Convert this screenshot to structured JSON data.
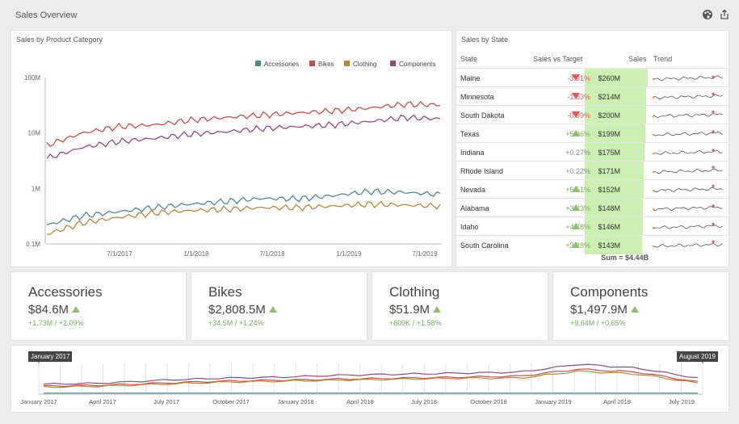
{
  "dashboard": {
    "title": "Sales Overview"
  },
  "header_icons": [
    "palette-icon",
    "export-icon"
  ],
  "category_chart": {
    "caption": "Sales by Product Category",
    "legend": [
      "Accessories",
      "Bikes",
      "Clothing",
      "Components"
    ]
  },
  "state_grid": {
    "caption": "Sales by State",
    "columns": [
      "State",
      "Sales vs Target",
      "Sales",
      "Trend"
    ],
    "rows": [
      {
        "state": "Maine",
        "delta": "-3.91%",
        "dir": "down",
        "sales": "$260M",
        "bar": 1.0
      },
      {
        "state": "Minnesota",
        "delta": "-1.53%",
        "dir": "down",
        "sales": "$214M",
        "bar": 0.98
      },
      {
        "state": "South Dakota",
        "delta": "-0.99%",
        "dir": "down",
        "sales": "$200M",
        "bar": 0.97
      },
      {
        "state": "Texas",
        "delta": "+5.86%",
        "dir": "up",
        "sales": "$199M",
        "bar": 0.96
      },
      {
        "state": "Indiana",
        "delta": "+0.27%",
        "dir": "none",
        "sales": "$175M",
        "bar": 0.95
      },
      {
        "state": "Rhode Island",
        "delta": "+0.22%",
        "dir": "none",
        "sales": "$171M",
        "bar": 0.94
      },
      {
        "state": "Nevada",
        "delta": "+5.51%",
        "dir": "up",
        "sales": "$152M",
        "bar": 0.93
      },
      {
        "state": "Alabama",
        "delta": "+3.23%",
        "dir": "up",
        "sales": "$148M",
        "bar": 0.92
      },
      {
        "state": "Idaho",
        "delta": "+4.78%",
        "dir": "up",
        "sales": "$146M",
        "bar": 0.92
      },
      {
        "state": "South Carolina",
        "delta": "+3.28%",
        "dir": "up",
        "sales": "$143M",
        "bar": 0.91
      }
    ],
    "total": "Sum = $4.44B"
  },
  "cards": [
    {
      "title": "Accessories",
      "value": "$84.6M",
      "delta": "+1.73M / +2.09%"
    },
    {
      "title": "Bikes",
      "value": "$2,808.5M",
      "delta": "+34.5M / +1.24%"
    },
    {
      "title": "Clothing",
      "value": "$51.9M",
      "delta": "+809K / +1.58%"
    },
    {
      "title": "Components",
      "value": "$1,497.9M",
      "delta": "+9.64M / +0.65%"
    }
  ],
  "range": {
    "start_flag": "January 2017",
    "end_flag": "August 2019",
    "ticks": [
      "January 2017",
      "April 2017",
      "July 2017",
      "October 2017",
      "January 2018",
      "April 2018",
      "July 2018",
      "October 2018",
      "January 2019",
      "April 2019",
      "July 2019"
    ]
  },
  "chart_data": [
    {
      "type": "line",
      "title": "Sales by Product Category",
      "log_scale": true,
      "ylim": [
        0.1,
        100
      ],
      "yticks": [
        "100M",
        "10M",
        "1M",
        "0.1M"
      ],
      "xticks": [
        "7/1/2017",
        "1/1/2018",
        "7/1/2018",
        "1/1/2019",
        "7/1/2019"
      ],
      "x": [
        "1/2017",
        "4/2017",
        "7/2017",
        "10/2017",
        "1/2018",
        "4/2018",
        "7/2018",
        "10/2018",
        "1/2019",
        "4/2019",
        "7/2019",
        "9/2019"
      ],
      "grid": false,
      "legend": "top-right",
      "series": [
        {
          "name": "Accessories",
          "color": "#4f8a8b",
          "values": [
            0.22,
            0.32,
            0.38,
            0.45,
            0.52,
            0.58,
            0.66,
            0.65,
            0.74,
            0.88,
            0.85,
            0.78
          ]
        },
        {
          "name": "Bikes",
          "color": "#c0504d",
          "values": [
            6,
            10,
            13,
            14,
            17,
            19,
            21,
            23,
            25,
            28,
            33,
            32
          ]
        },
        {
          "name": "Clothing",
          "color": "#b5883e",
          "values": [
            0.15,
            0.24,
            0.3,
            0.36,
            0.4,
            0.42,
            0.45,
            0.45,
            0.48,
            0.52,
            0.5,
            0.48
          ]
        },
        {
          "name": "Components",
          "color": "#8e4e78",
          "values": [
            3.5,
            5.5,
            7,
            8,
            9.5,
            10.5,
            12,
            13,
            14,
            16,
            19,
            18
          ]
        }
      ]
    },
    {
      "type": "line",
      "title": "",
      "x": [
        "January 2017",
        "April 2017",
        "July 2017",
        "October 2017",
        "January 2018",
        "April 2018",
        "July 2018",
        "October 2018",
        "January 2019",
        "April 2019",
        "July 2019",
        "August 2019"
      ],
      "series": [
        {
          "name": "Components",
          "color": "#8e4e78",
          "values": [
            10,
            11,
            14,
            16,
            17,
            19,
            20,
            21,
            22,
            30,
            26,
            16
          ]
        },
        {
          "name": "Bikes",
          "color": "#c0504d",
          "values": [
            8,
            9,
            11,
            13,
            14,
            15,
            16,
            17,
            18,
            25,
            22,
            12
          ]
        },
        {
          "name": "Clothing",
          "color": "#b5883e",
          "values": [
            7,
            8,
            10,
            12,
            13,
            14,
            15,
            16,
            16,
            23,
            20,
            11
          ]
        },
        {
          "name": "Accessories",
          "color": "#4f8a8b",
          "values": [
            1,
            1,
            1,
            1,
            1,
            1,
            1,
            1,
            1,
            1,
            1,
            1
          ]
        }
      ]
    }
  ]
}
